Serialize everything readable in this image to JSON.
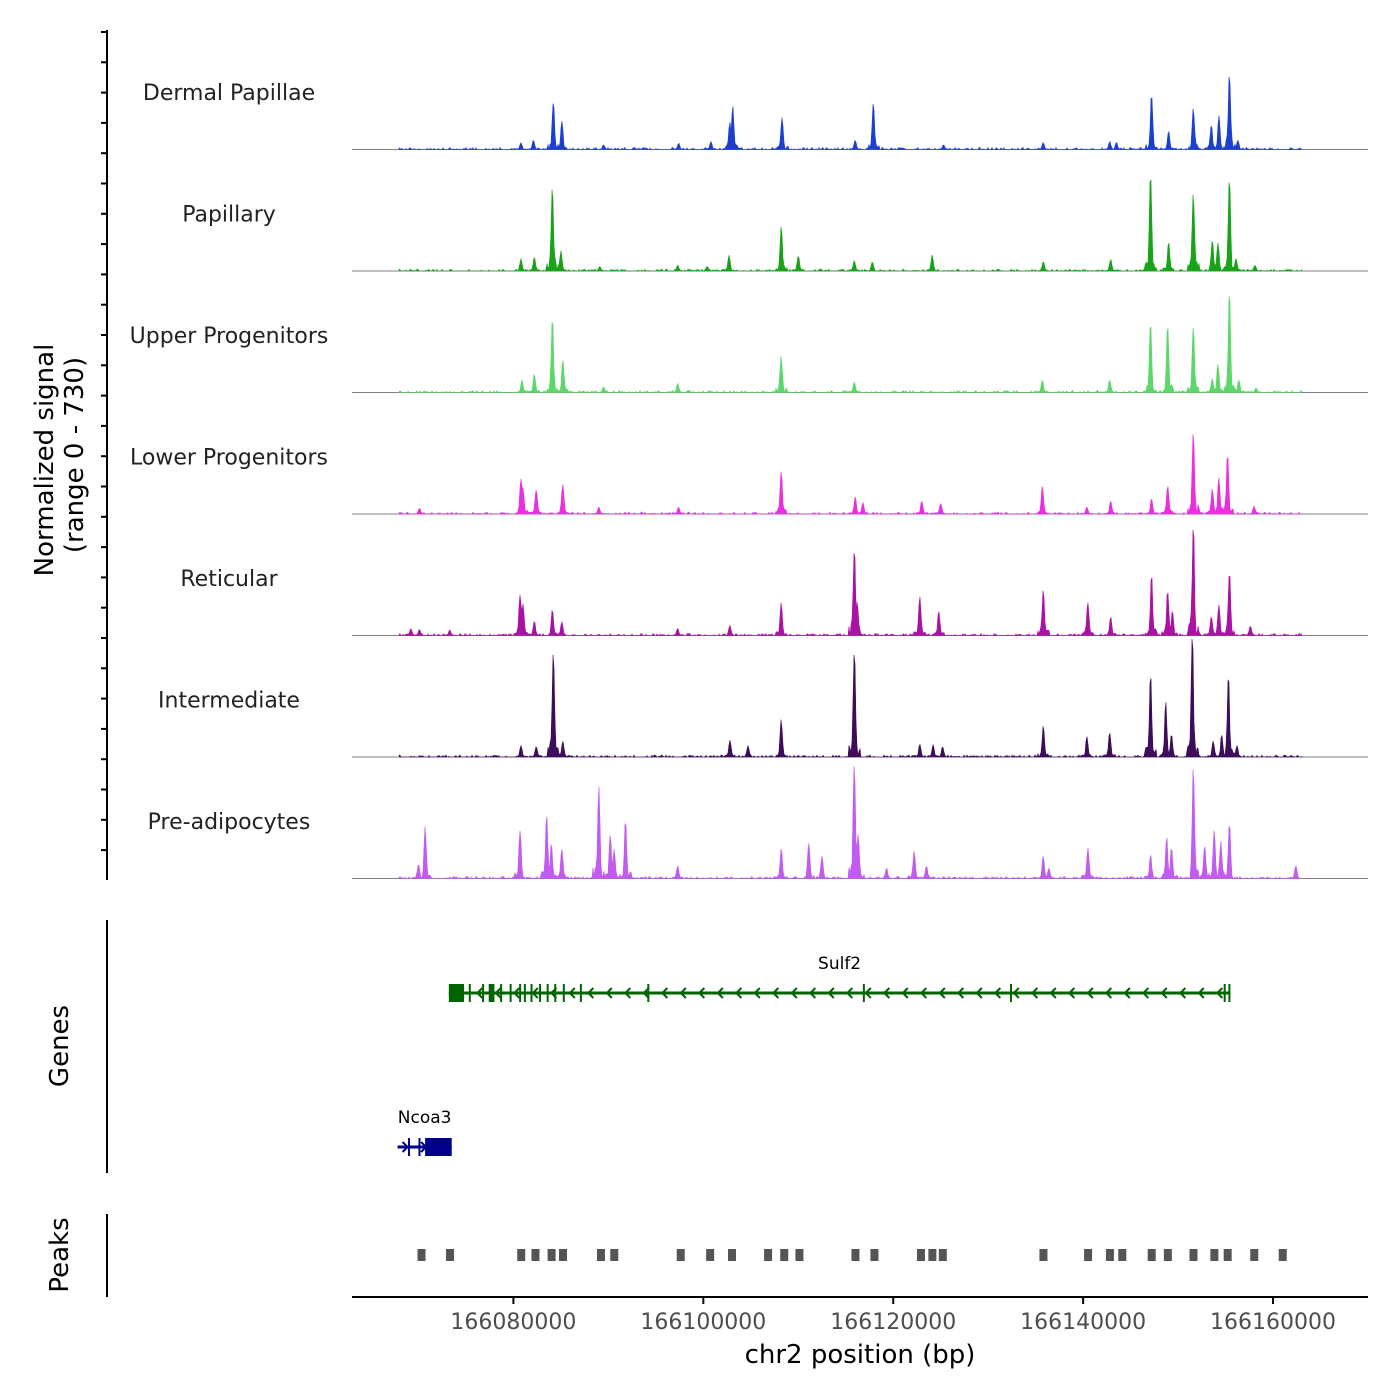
{
  "chart_data": {
    "type": "area",
    "chromosome": "chr2",
    "xlim": [
      166063000,
      166170000
    ],
    "signal_ylim": [
      0,
      730
    ],
    "signal_ylabel": "Normalized signal",
    "signal_ylabel_range": "(range 0 - 730)",
    "xlabel": "chr2 position (bp)",
    "x_ticks": [
      166080000,
      166100000,
      166120000,
      166140000,
      166160000
    ],
    "x_tick_labels": [
      "166080000",
      "166100000",
      "166120000",
      "166140000",
      "166160000"
    ],
    "track_extent": [
      166068000,
      166163000
    ],
    "series": [
      {
        "name": "Dermal Papillae",
        "color": "#1c3fcf",
        "peaks": [
          [
            166080800,
            60
          ],
          [
            166082100,
            80
          ],
          [
            166084200,
            420
          ],
          [
            166085100,
            250
          ],
          [
            166089500,
            40
          ],
          [
            166097400,
            55
          ],
          [
            166100800,
            70
          ],
          [
            166102800,
            240
          ],
          [
            166103100,
            380
          ],
          [
            166108300,
            280
          ],
          [
            166116000,
            80
          ],
          [
            166117900,
            400
          ],
          [
            166125300,
            40
          ],
          [
            166135800,
            60
          ],
          [
            166142800,
            70
          ],
          [
            166143500,
            60
          ],
          [
            166147200,
            490
          ],
          [
            166149000,
            160
          ],
          [
            166151600,
            360
          ],
          [
            166153500,
            210
          ],
          [
            166154300,
            300
          ],
          [
            166155400,
            640
          ],
          [
            166156300,
            80
          ]
        ]
      },
      {
        "name": "Papillary",
        "color": "#18a318",
        "peaks": [
          [
            166080800,
            110
          ],
          [
            166082200,
            120
          ],
          [
            166084100,
            730
          ],
          [
            166085000,
            180
          ],
          [
            166089100,
            40
          ],
          [
            166097300,
            50
          ],
          [
            166100400,
            40
          ],
          [
            166102700,
            140
          ],
          [
            166108200,
            390
          ],
          [
            166110000,
            130
          ],
          [
            166115900,
            90
          ],
          [
            166117800,
            80
          ],
          [
            166124100,
            140
          ],
          [
            166135800,
            80
          ],
          [
            166142900,
            100
          ],
          [
            166147100,
            800
          ],
          [
            166149000,
            250
          ],
          [
            166151600,
            670
          ],
          [
            166153600,
            270
          ],
          [
            166154200,
            250
          ],
          [
            166155400,
            780
          ],
          [
            166156100,
            110
          ],
          [
            166158100,
            50
          ]
        ]
      },
      {
        "name": "Upper Progenitors",
        "color": "#5cd86b",
        "peaks": [
          [
            166080900,
            110
          ],
          [
            166082200,
            160
          ],
          [
            166084100,
            630
          ],
          [
            166085200,
            280
          ],
          [
            166089500,
            50
          ],
          [
            166097300,
            80
          ],
          [
            166108200,
            320
          ],
          [
            166115900,
            90
          ],
          [
            166135700,
            110
          ],
          [
            166142800,
            110
          ],
          [
            166147100,
            610
          ],
          [
            166148900,
            570
          ],
          [
            166151600,
            570
          ],
          [
            166153600,
            120
          ],
          [
            166154200,
            250
          ],
          [
            166155400,
            870
          ],
          [
            166156400,
            110
          ],
          [
            166158200,
            40
          ]
        ]
      },
      {
        "name": "Lower Progenitors",
        "color": "#ec2ee0",
        "peaks": [
          [
            166070100,
            50
          ],
          [
            166080800,
            310
          ],
          [
            166081000,
            230
          ],
          [
            166082400,
            210
          ],
          [
            166085200,
            260
          ],
          [
            166089000,
            60
          ],
          [
            166097400,
            60
          ],
          [
            166108200,
            370
          ],
          [
            166116000,
            150
          ],
          [
            166116800,
            100
          ],
          [
            166123000,
            110
          ],
          [
            166125000,
            90
          ],
          [
            166135700,
            250
          ],
          [
            166140400,
            60
          ],
          [
            166142900,
            110
          ],
          [
            166147200,
            130
          ],
          [
            166148900,
            250
          ],
          [
            166151600,
            720
          ],
          [
            166153600,
            220
          ],
          [
            166154300,
            320
          ],
          [
            166155200,
            500
          ],
          [
            166158000,
            70
          ]
        ]
      },
      {
        "name": "Reticular",
        "color": "#aa12a6",
        "peaks": [
          [
            166069200,
            60
          ],
          [
            166070100,
            50
          ],
          [
            166073300,
            50
          ],
          [
            166080700,
            360
          ],
          [
            166081000,
            280
          ],
          [
            166082200,
            120
          ],
          [
            166084100,
            230
          ],
          [
            166085100,
            120
          ],
          [
            166097300,
            60
          ],
          [
            166102800,
            90
          ],
          [
            166108200,
            290
          ],
          [
            166115900,
            750
          ],
          [
            166116200,
            300
          ],
          [
            166122800,
            340
          ],
          [
            166124800,
            210
          ],
          [
            166135800,
            400
          ],
          [
            166140500,
            290
          ],
          [
            166142900,
            160
          ],
          [
            166147200,
            510
          ],
          [
            166148900,
            380
          ],
          [
            166149400,
            210
          ],
          [
            166151600,
            950
          ],
          [
            166153500,
            160
          ],
          [
            166154300,
            270
          ],
          [
            166155400,
            550
          ],
          [
            166157600,
            80
          ]
        ]
      },
      {
        "name": "Intermediate",
        "color": "#3d0c5a",
        "peaks": [
          [
            166080800,
            100
          ],
          [
            166082400,
            90
          ],
          [
            166083900,
            130
          ],
          [
            166084200,
            900
          ],
          [
            166085200,
            140
          ],
          [
            166102800,
            150
          ],
          [
            166104700,
            100
          ],
          [
            166108200,
            330
          ],
          [
            166115900,
            900
          ],
          [
            166122800,
            110
          ],
          [
            166124200,
            110
          ],
          [
            166125200,
            90
          ],
          [
            166135800,
            270
          ],
          [
            166140400,
            180
          ],
          [
            166142800,
            210
          ],
          [
            166147100,
            740
          ],
          [
            166148700,
            490
          ],
          [
            166149300,
            190
          ],
          [
            166151500,
            1040
          ],
          [
            166153700,
            140
          ],
          [
            166154600,
            190
          ],
          [
            166155300,
            680
          ],
          [
            166156200,
            100
          ]
        ]
      },
      {
        "name": "Pre-adipocytes",
        "color": "#c25bf0",
        "peaks": [
          [
            166070000,
            120
          ],
          [
            166070700,
            460
          ],
          [
            166080700,
            420
          ],
          [
            166083500,
            550
          ],
          [
            166084000,
            300
          ],
          [
            166085100,
            260
          ],
          [
            166089000,
            810
          ],
          [
            166090200,
            380
          ],
          [
            166090600,
            260
          ],
          [
            166091800,
            510
          ],
          [
            166097300,
            110
          ],
          [
            166108200,
            260
          ],
          [
            166111100,
            310
          ],
          [
            166112500,
            200
          ],
          [
            166115900,
            1030
          ],
          [
            166116300,
            390
          ],
          [
            166119300,
            90
          ],
          [
            166122200,
            240
          ],
          [
            166123500,
            110
          ],
          [
            166135800,
            200
          ],
          [
            166136400,
            90
          ],
          [
            166140500,
            270
          ],
          [
            166147100,
            200
          ],
          [
            166148800,
            360
          ],
          [
            166149300,
            260
          ],
          [
            166151600,
            960
          ],
          [
            166152800,
            280
          ],
          [
            166153800,
            420
          ],
          [
            166154500,
            330
          ],
          [
            166155400,
            470
          ],
          [
            166162400,
            110
          ]
        ]
      }
    ],
    "genes": [
      {
        "name": "Sulf2",
        "strand": "-",
        "color": "#006400",
        "start": 166073200,
        "end": 166155500,
        "exons": [
          [
            166073200,
            166074800
          ],
          [
            166075300,
            166075400
          ],
          [
            166076700,
            166076800
          ],
          [
            166077400,
            166078000
          ],
          [
            166078600,
            166078700
          ],
          [
            166079600,
            166079700
          ],
          [
            166080600,
            166080700
          ],
          [
            166081100,
            166081200
          ],
          [
            166081800,
            166081900
          ],
          [
            166082700,
            166082800
          ],
          [
            166083500,
            166083600
          ],
          [
            166084300,
            166084400
          ],
          [
            166085200,
            166085300
          ],
          [
            166087000,
            166087100
          ],
          [
            166094100,
            166094200
          ],
          [
            166116800,
            166116900
          ],
          [
            166132300,
            166132400
          ],
          [
            166154800,
            166155000
          ],
          [
            166155300,
            166155500
          ]
        ]
      },
      {
        "name": "Ncoa3",
        "strand": "+",
        "color": "#00008b",
        "start": 166067800,
        "end": 166073500,
        "exons": [
          [
            166068900,
            166069000
          ],
          [
            166070000,
            166070100
          ],
          [
            166070700,
            166073500
          ]
        ]
      }
    ],
    "gene_labels": {
      "track": "Genes"
    },
    "peaks_track": {
      "label": "Peaks",
      "color": "#555555",
      "regions": [
        [
          166069900,
          166070700
        ],
        [
          166072900,
          166073700
        ],
        [
          166080400,
          166081200
        ],
        [
          166081900,
          166082700
        ],
        [
          166083600,
          166084400
        ],
        [
          166084800,
          166085600
        ],
        [
          166088800,
          166089600
        ],
        [
          166090200,
          166091000
        ],
        [
          166097200,
          166098000
        ],
        [
          166100300,
          166101100
        ],
        [
          166102600,
          166103400
        ],
        [
          166106400,
          166107200
        ],
        [
          166108100,
          166108900
        ],
        [
          166109700,
          166110500
        ],
        [
          166115600,
          166116400
        ],
        [
          166117600,
          166118400
        ],
        [
          166122500,
          166123300
        ],
        [
          166123700,
          166124500
        ],
        [
          166124800,
          166125600
        ],
        [
          166135400,
          166136200
        ],
        [
          166140100,
          166140900
        ],
        [
          166142400,
          166143200
        ],
        [
          166143700,
          166144500
        ],
        [
          166146800,
          166147600
        ],
        [
          166148500,
          166149300
        ],
        [
          166151200,
          166152000
        ],
        [
          166153400,
          166154200
        ],
        [
          166154800,
          166155600
        ],
        [
          166157600,
          166158400
        ],
        [
          166160600,
          166161400
        ]
      ]
    }
  }
}
